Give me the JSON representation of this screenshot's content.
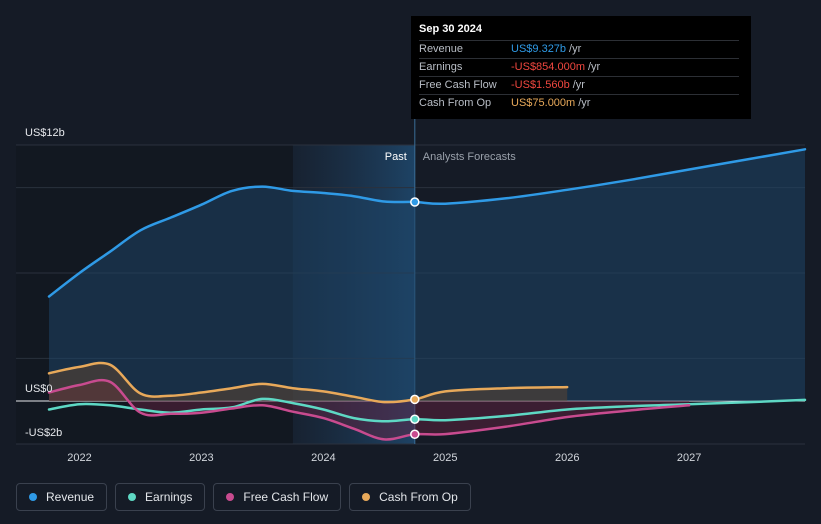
{
  "tooltip": {
    "date": "Sep 30 2024",
    "rows": [
      {
        "label": "Revenue",
        "value": "US$9.327b",
        "unit": "/yr",
        "color": "#2f9ae6"
      },
      {
        "label": "Earnings",
        "value": "-US$854.000m",
        "unit": "/yr",
        "color": "#f0473f"
      },
      {
        "label": "Free Cash Flow",
        "value": "-US$1.560b",
        "unit": "/yr",
        "color": "#f0473f"
      },
      {
        "label": "Cash From Op",
        "value": "US$75.000m",
        "unit": "/yr",
        "color": "#e8a95a"
      }
    ]
  },
  "regions": {
    "past": "Past",
    "forecast": "Analysts Forecasts"
  },
  "legend": [
    {
      "label": "Revenue",
      "color": "#2f9ae6"
    },
    {
      "label": "Earnings",
      "color": "#5ed8c4"
    },
    {
      "label": "Free Cash Flow",
      "color": "#c84b8f"
    },
    {
      "label": "Cash From Op",
      "color": "#e8a95a"
    }
  ],
  "chart_data": {
    "type": "line",
    "x_ticks": [
      "2022",
      "2023",
      "2024",
      "2025",
      "2026",
      "2027"
    ],
    "y_ticks": [
      {
        "value": 12,
        "label": "US$12b"
      },
      {
        "value": 0,
        "label": "US$0"
      },
      {
        "value": -2,
        "label": "-US$2b"
      }
    ],
    "x_range": [
      2021.75,
      2027.95
    ],
    "y_range": [
      -2,
      12
    ],
    "highlight_start": 2023.75,
    "past_end": 2024.75,
    "series": [
      {
        "name": "Revenue",
        "color": "#2f9ae6",
        "fill": true,
        "points": [
          [
            2021.75,
            4.9
          ],
          [
            2022.0,
            6.0
          ],
          [
            2022.25,
            7.0
          ],
          [
            2022.5,
            8.0
          ],
          [
            2022.75,
            8.6
          ],
          [
            2023.0,
            9.2
          ],
          [
            2023.25,
            9.85
          ],
          [
            2023.5,
            10.05
          ],
          [
            2023.75,
            9.85
          ],
          [
            2024.0,
            9.75
          ],
          [
            2024.25,
            9.6
          ],
          [
            2024.5,
            9.35
          ],
          [
            2024.75,
            9.327
          ],
          [
            2025.0,
            9.25
          ],
          [
            2025.5,
            9.5
          ],
          [
            2026.0,
            9.9
          ],
          [
            2026.5,
            10.35
          ],
          [
            2027.0,
            10.85
          ],
          [
            2027.5,
            11.35
          ],
          [
            2027.95,
            11.8
          ]
        ],
        "marker_at": 2024.75
      },
      {
        "name": "Earnings",
        "color": "#5ed8c4",
        "fill": false,
        "points": [
          [
            2021.75,
            -0.4
          ],
          [
            2022.0,
            -0.15
          ],
          [
            2022.25,
            -0.2
          ],
          [
            2022.5,
            -0.4
          ],
          [
            2022.75,
            -0.55
          ],
          [
            2023.0,
            -0.4
          ],
          [
            2023.25,
            -0.3
          ],
          [
            2023.5,
            0.1
          ],
          [
            2023.75,
            -0.1
          ],
          [
            2024.0,
            -0.4
          ],
          [
            2024.25,
            -0.8
          ],
          [
            2024.5,
            -0.95
          ],
          [
            2024.75,
            -0.854
          ],
          [
            2025.0,
            -0.9
          ],
          [
            2025.5,
            -0.7
          ],
          [
            2026.0,
            -0.4
          ],
          [
            2026.5,
            -0.25
          ],
          [
            2027.0,
            -0.15
          ],
          [
            2027.5,
            -0.05
          ],
          [
            2027.95,
            0.05
          ]
        ],
        "marker_at": 2024.75
      },
      {
        "name": "Free Cash Flow",
        "color": "#c84b8f",
        "fill": true,
        "points": [
          [
            2021.75,
            0.4
          ],
          [
            2022.0,
            0.75
          ],
          [
            2022.25,
            0.9
          ],
          [
            2022.5,
            -0.55
          ],
          [
            2022.75,
            -0.6
          ],
          [
            2023.0,
            -0.55
          ],
          [
            2023.25,
            -0.35
          ],
          [
            2023.5,
            -0.2
          ],
          [
            2023.75,
            -0.5
          ],
          [
            2024.0,
            -0.8
          ],
          [
            2024.25,
            -1.3
          ],
          [
            2024.5,
            -1.8
          ],
          [
            2024.75,
            -1.56
          ],
          [
            2025.0,
            -1.55
          ],
          [
            2025.5,
            -1.2
          ],
          [
            2026.0,
            -0.75
          ],
          [
            2026.5,
            -0.45
          ],
          [
            2027.0,
            -0.2
          ]
        ],
        "marker_at": 2024.75
      },
      {
        "name": "Cash From Op",
        "color": "#e8a95a",
        "fill": true,
        "points": [
          [
            2021.75,
            1.3
          ],
          [
            2022.0,
            1.6
          ],
          [
            2022.25,
            1.7
          ],
          [
            2022.5,
            0.35
          ],
          [
            2022.75,
            0.25
          ],
          [
            2023.0,
            0.4
          ],
          [
            2023.25,
            0.6
          ],
          [
            2023.5,
            0.8
          ],
          [
            2023.75,
            0.6
          ],
          [
            2024.0,
            0.45
          ],
          [
            2024.25,
            0.2
          ],
          [
            2024.5,
            -0.05
          ],
          [
            2024.75,
            0.075
          ],
          [
            2025.0,
            0.45
          ],
          [
            2025.5,
            0.6
          ],
          [
            2026.0,
            0.65
          ]
        ],
        "marker_at": 2024.75
      }
    ]
  }
}
